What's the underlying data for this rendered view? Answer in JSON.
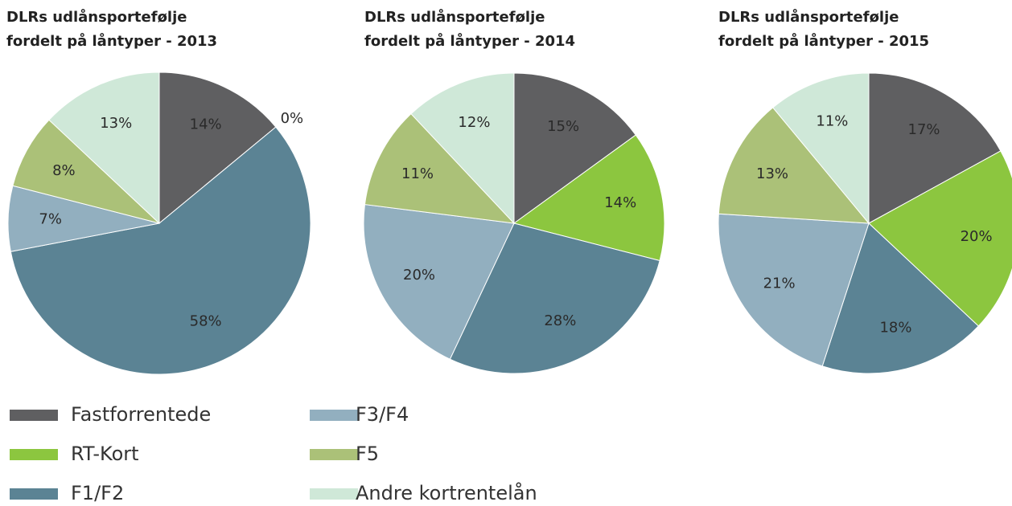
{
  "legend": {
    "labels": [
      "Fastforrentede",
      "RT-Kort",
      "F1/F2",
      "F3/F4",
      "F5",
      "Andre kortrentelån"
    ],
    "colors": [
      "#5f5f61",
      "#8cc63f",
      "#5b8394",
      "#92afbf",
      "#abc178",
      "#cfe8d8"
    ]
  },
  "chart_data": [
    {
      "type": "pie",
      "title": [
        "DLRs udlånsportefølje",
        "fordelt på låntyper - 2013"
      ],
      "values": [
        14,
        0,
        58,
        7,
        8,
        13
      ],
      "value_labels": [
        "14%",
        "0%",
        "58%",
        "7%",
        "8%",
        "13%"
      ]
    },
    {
      "type": "pie",
      "title": [
        "DLRs udlånsportefølje",
        "fordelt på låntyper - 2014"
      ],
      "values": [
        15,
        14,
        28,
        20,
        11,
        12
      ],
      "value_labels": [
        "15%",
        "14%",
        "28%",
        "20%",
        "11%",
        "12%"
      ]
    },
    {
      "type": "pie",
      "title": [
        "DLRs udlånsportefølje",
        "fordelt på låntyper - 2015"
      ],
      "values": [
        17,
        20,
        18,
        21,
        13,
        11
      ],
      "value_labels": [
        "17%",
        "20%",
        "18%",
        "21%",
        "13%",
        "11%"
      ]
    }
  ]
}
